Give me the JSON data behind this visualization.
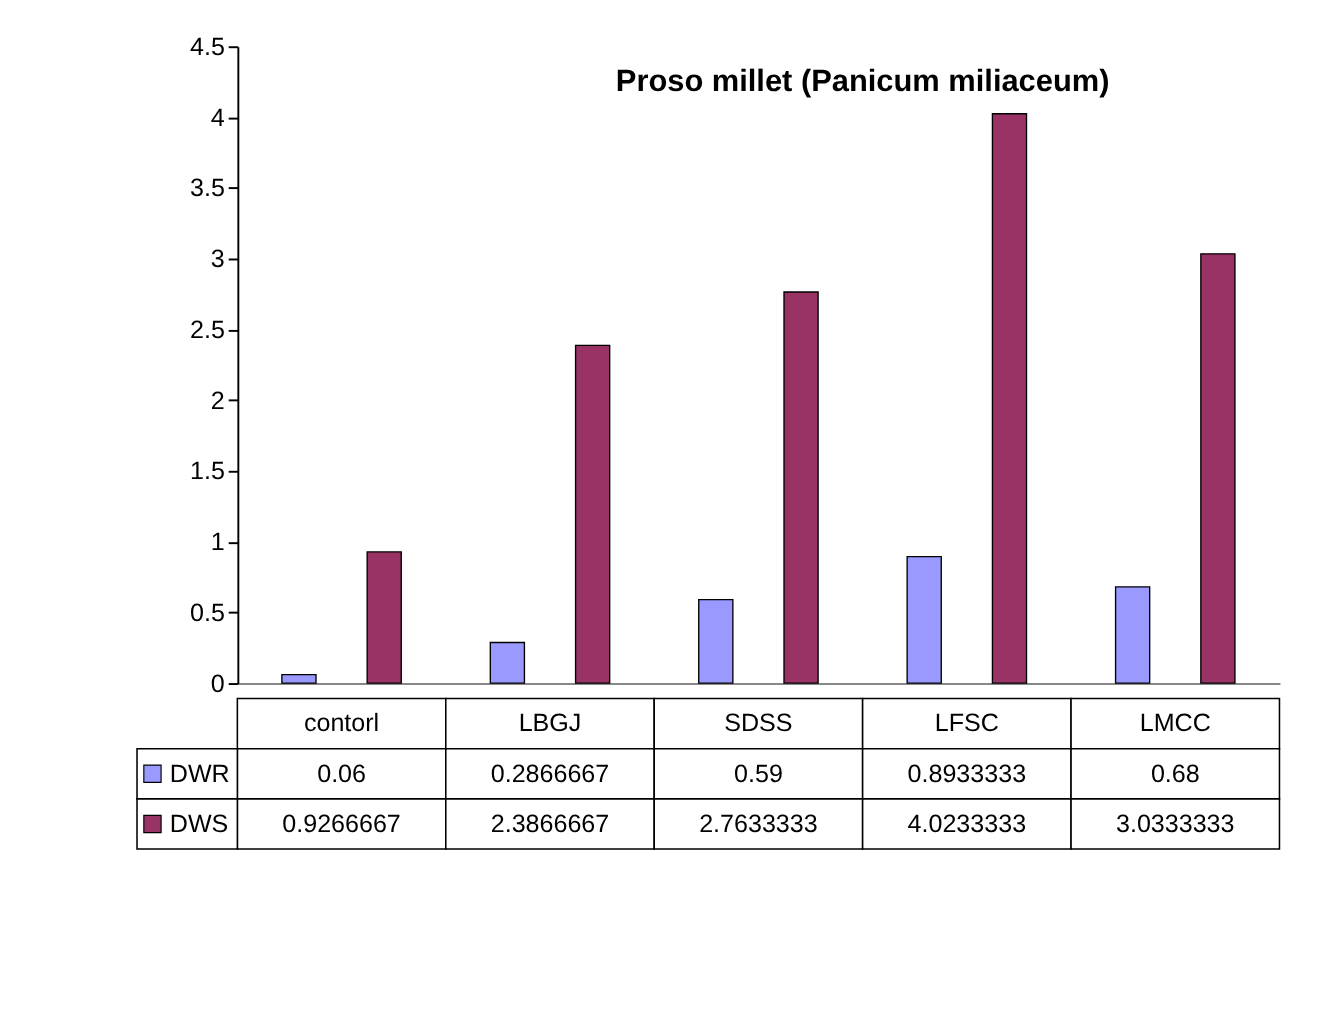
{
  "chart_data": {
    "type": "bar",
    "title": "Proso millet (Panicum miliaceum)",
    "categories": [
      "contorl",
      "LBGJ",
      "SDSS",
      "LFSC",
      "LMCC"
    ],
    "series": [
      {
        "name": "DWR",
        "color": "#9999ff",
        "values": [
          0.06,
          0.2866667,
          0.59,
          0.8933333,
          0.68
        ]
      },
      {
        "name": "DWS",
        "color": "#993366",
        "values": [
          0.9266667,
          2.3866667,
          2.7633333,
          4.0233333,
          3.0333333
        ]
      }
    ],
    "ylim": [
      0,
      4.5
    ],
    "yticks": [
      0,
      0.5,
      1,
      1.5,
      2,
      2.5,
      3,
      3.5,
      4,
      4.5
    ],
    "grid": false,
    "legend": "bottom",
    "data_labels": true
  }
}
